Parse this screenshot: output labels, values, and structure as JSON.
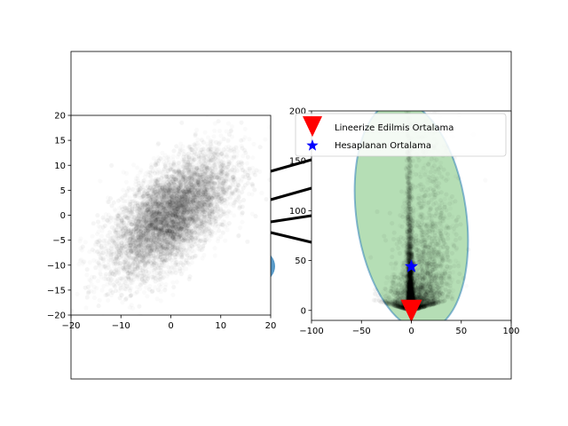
{
  "chart_data": [
    {
      "type": "scatter",
      "panel": "left",
      "xlim": [
        -20,
        20
      ],
      "ylim": [
        -20,
        20
      ],
      "xticks": [
        -20,
        -10,
        0,
        10,
        20
      ],
      "yticks": [
        -20,
        -15,
        -10,
        -5,
        0,
        5,
        10,
        15,
        20
      ],
      "series": [
        {
          "color": "#000000",
          "alpha": 0.02,
          "distribution": {
            "mean": [
              0,
              0
            ],
            "std": [
              6,
              6
            ],
            "correlation": 0.6,
            "count": 9000
          }
        }
      ]
    },
    {
      "type": "scatter",
      "panel": "right",
      "xlim": [
        -100,
        100
      ],
      "ylim": [
        -10,
        200
      ],
      "xticks": [
        -100,
        -50,
        0,
        50,
        100
      ],
      "yticks": [
        0,
        50,
        100,
        150,
        200
      ],
      "legend_position": "upper-left",
      "series": [
        {
          "color": "#000000",
          "alpha": 0.02,
          "shape": "banana",
          "count": 9000
        },
        {
          "name": "Lineerize Edilmis Ortalama",
          "marker": "triangle-down",
          "color": "#ff0000",
          "x": [
            0
          ],
          "y": [
            0
          ]
        },
        {
          "name": "Hesaplanan Ortalama",
          "marker": "star",
          "color": "#0000ff",
          "x": [
            0
          ],
          "y": [
            44
          ]
        }
      ],
      "ellipses": [
        {
          "color": "#2ca02c",
          "edge": "#1f77b4",
          "alpha": 0.35
        }
      ]
    }
  ],
  "background_ellipse_color": "#1f77b4",
  "connector_color": "#000000"
}
